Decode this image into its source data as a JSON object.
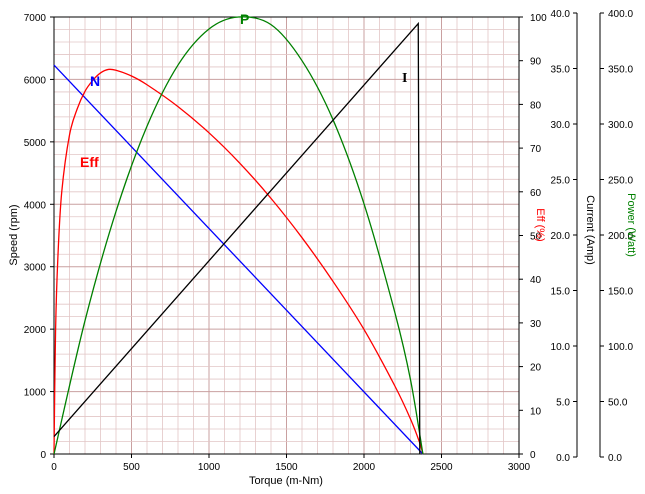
{
  "chart_data": {
    "type": "line",
    "grid": true,
    "x": {
      "label": "Torque (m-Nm)",
      "range": [
        0,
        3000
      ],
      "ticks": [
        "0",
        "500",
        "1000",
        "1500",
        "2000",
        "2500",
        "3000"
      ]
    },
    "axes": {
      "speed": {
        "label": "Speed (rpm)",
        "range": [
          0,
          7000
        ],
        "color": "#000000",
        "ticks": [
          "0",
          "1000",
          "2000",
          "3000",
          "4000",
          "5000",
          "6000",
          "7000"
        ]
      },
      "eff": {
        "label": "Eff (%)",
        "range": [
          0,
          100
        ],
        "color": "#ff0000",
        "ticks": [
          "0",
          "10",
          "20",
          "30",
          "40",
          "50",
          "60",
          "70",
          "80",
          "90",
          "100"
        ]
      },
      "current": {
        "label": "Current (Amp)",
        "range": [
          0,
          40
        ],
        "color": "#000000",
        "ticks": [
          "0.0",
          "5.0",
          "10.0",
          "15.0",
          "20.0",
          "25.0",
          "30.0",
          "35.0",
          "40.0"
        ]
      },
      "power": {
        "label": "Power (Watt)",
        "range": [
          0,
          400
        ],
        "color": "#008000",
        "ticks": [
          "0.0",
          "50.0",
          "100.0",
          "150.0",
          "200.0",
          "250.0",
          "300.0",
          "350.0",
          "400.0"
        ]
      }
    },
    "series": [
      {
        "name": "N",
        "axis": "speed",
        "color": "#0000ff",
        "x": [
          0,
          2380
        ],
        "y": [
          6230,
          0
        ]
      },
      {
        "name": "Eff",
        "axis": "eff",
        "color": "#ff0000",
        "x": [
          0,
          10,
          25,
          50,
          100,
          150,
          200,
          250,
          300,
          350,
          400,
          500,
          600,
          800,
          1000,
          1200,
          1400,
          1600,
          1800,
          2000,
          2200,
          2300,
          2360,
          2380
        ],
        "y": [
          0,
          28,
          45,
          60,
          73,
          79,
          83,
          85.5,
          87.2,
          88,
          87.8,
          86.5,
          84.5,
          79.5,
          73.5,
          66.5,
          58.5,
          49.5,
          39.5,
          28.5,
          15.5,
          8,
          2.5,
          0
        ]
      },
      {
        "name": "P",
        "axis": "power",
        "color": "#008000",
        "x": [
          0,
          200,
          400,
          600,
          800,
          1000,
          1190,
          1400,
          1600,
          1800,
          2000,
          2200,
          2300,
          2380
        ],
        "y": [
          0,
          122,
          222,
          300,
          356,
          389,
          400,
          393,
          360,
          306,
          229,
          129,
          68,
          0
        ]
      },
      {
        "name": "I",
        "axis": "current",
        "color": "#000000",
        "x": [
          0,
          2350,
          2350,
          2360
        ],
        "y": [
          1.6,
          39.4,
          39.4,
          0
        ]
      }
    ],
    "series_labels": {
      "N": {
        "text": "N",
        "color": "#0000ff"
      },
      "Eff": {
        "text": "Eff",
        "color": "#ff0000"
      },
      "P": {
        "text": "P",
        "color": "#008000"
      },
      "I": {
        "text": "I",
        "color": "#000000"
      }
    }
  }
}
